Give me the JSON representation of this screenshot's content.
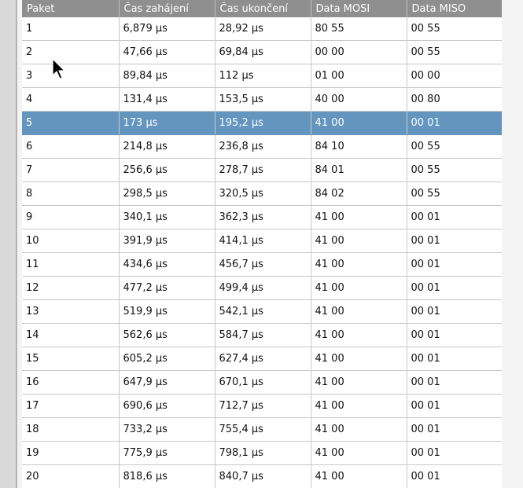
{
  "table": {
    "columns": [
      "Paket",
      "Čas zahájení",
      "Čas ukončení",
      "Data MOSI",
      "Data MISO"
    ],
    "selected_row": 5,
    "rows": [
      [
        "1",
        "6,879 µs",
        "28,92 µs",
        "80 55",
        "00 55"
      ],
      [
        "2",
        "47,66 µs",
        "69,84 µs",
        "00 00",
        "00 55"
      ],
      [
        "3",
        "89,84 µs",
        "112 µs",
        "01 00",
        "00 00"
      ],
      [
        "4",
        "131,4 µs",
        "153,5 µs",
        "40 00",
        "00 80"
      ],
      [
        "5",
        "173 µs",
        "195,2 µs",
        "41 00",
        "00 01"
      ],
      [
        "6",
        "214,8 µs",
        "236,8 µs",
        "84 10",
        "00 55"
      ],
      [
        "7",
        "256,6 µs",
        "278,7 µs",
        "84 01",
        "00 55"
      ],
      [
        "8",
        "298,5 µs",
        "320,5 µs",
        "84 02",
        "00 55"
      ],
      [
        "9",
        "340,1 µs",
        "362,3 µs",
        "41 00",
        "00 01"
      ],
      [
        "10",
        "391,9 µs",
        "414,1 µs",
        "41 00",
        "00 01"
      ],
      [
        "11",
        "434,6 µs",
        "456,7 µs",
        "41 00",
        "00 01"
      ],
      [
        "12",
        "477,2 µs",
        "499,4 µs",
        "41 00",
        "00 01"
      ],
      [
        "13",
        "519,9 µs",
        "542,1 µs",
        "41 00",
        "00 01"
      ],
      [
        "14",
        "562,6 µs",
        "584,7 µs",
        "41 00",
        "00 01"
      ],
      [
        "15",
        "605,2 µs",
        "627,4 µs",
        "41 00",
        "00 01"
      ],
      [
        "16",
        "647,9 µs",
        "670,1 µs",
        "41 00",
        "00 01"
      ],
      [
        "17",
        "690,6 µs",
        "712,7 µs",
        "41 00",
        "00 01"
      ],
      [
        "18",
        "733,2 µs",
        "755,4 µs",
        "41 00",
        "00 01"
      ],
      [
        "19",
        "775,9 µs",
        "798,1 µs",
        "41 00",
        "00 01"
      ],
      [
        "20",
        "818,6 µs",
        "840,7 µs",
        "41 00",
        "00 01"
      ]
    ]
  },
  "colors": {
    "header_bg": "#8f8f8f",
    "selected_bg": "#6495be",
    "grid_line": "#c8c8c8"
  },
  "cursor_icon": "mouse-pointer-icon"
}
